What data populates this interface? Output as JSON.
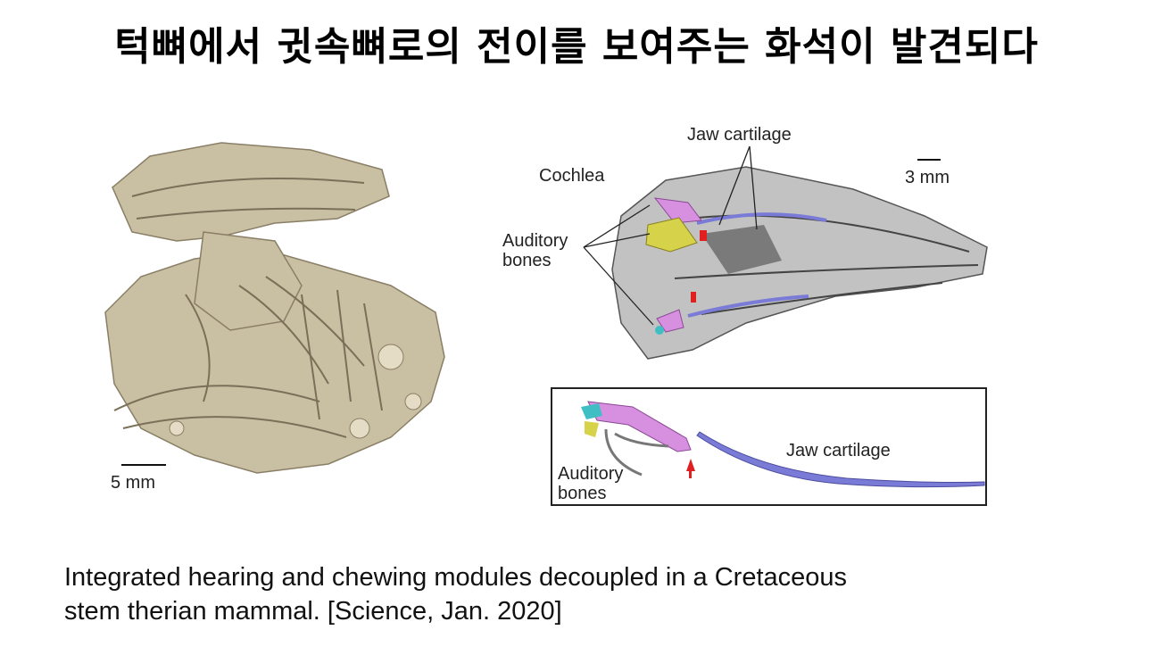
{
  "slide": {
    "title": "턱뼈에서 귓속뼈로의 전이를 보여주는 화석이 발견되다",
    "caption_line1": "Integrated hearing and chewing modules decoupled in a Cretaceous",
    "caption_line2": "stem therian mammal. [Science, Jan. 2020]"
  },
  "figure": {
    "left_scale": "5 mm",
    "skull_scale": "3 mm",
    "jaw_cartilage_top": "Jaw cartilage",
    "cochlea": "Cochlea",
    "auditory_bones_top": "Auditory\nbones",
    "jaw_cartilage_inset": "Jaw cartilage",
    "auditory_bones_inset": "Auditory\nbones"
  },
  "colors": {
    "fossil": "#c9bfa3",
    "bone_gray": "#b8b8b8",
    "cartilage_blue": "#7a7bd6",
    "cochlea_pink": "#d78fe0",
    "auditory_yellow": "#d6d24a",
    "marker_red": "#e02020",
    "teal": "#3fbfc4"
  }
}
